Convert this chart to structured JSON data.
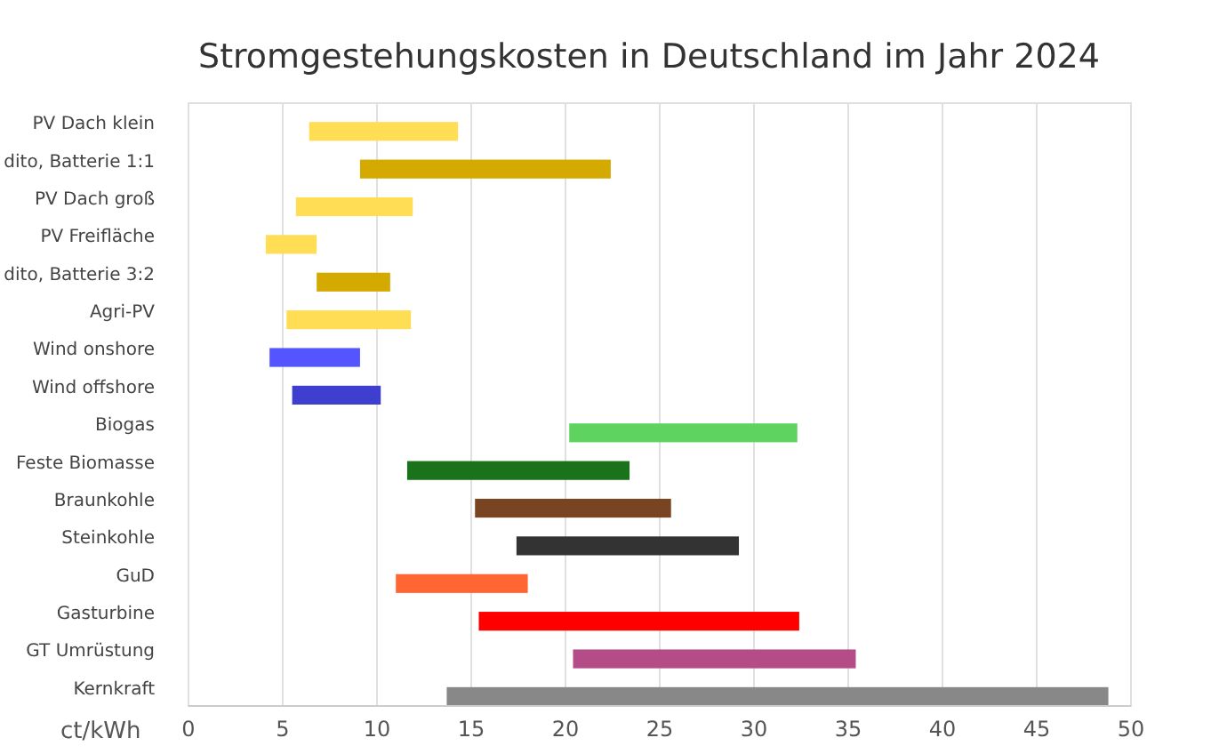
{
  "chart_data": {
    "type": "bar",
    "orientation": "horizontal",
    "title": "Stromgestehungskosten in Deutschland im Jahr 2024",
    "xlabel": "ct/kWh",
    "categories": [
      "PV Dach klein",
      "dito, Batterie 1:1",
      "PV Dach groß",
      "PV Freifläche",
      "dito, Batterie 3:2",
      "Agri-PV",
      "Wind onshore",
      "Wind offshore",
      "Biogas",
      "Feste Biomasse",
      "Braunkohle",
      "Steinkohle",
      "GuD",
      "Gasturbine",
      "GT Umrüstung",
      "Kernkraft"
    ],
    "base": [
      6.4,
      9.1,
      5.7,
      4.1,
      6.8,
      5.2,
      4.3,
      5.5,
      20.2,
      11.6,
      15.2,
      17.4,
      11.0,
      15.4,
      20.4,
      13.7
    ],
    "values": [
      7.9,
      13.3,
      6.2,
      2.7,
      3.9,
      6.6,
      4.8,
      4.7,
      12.1,
      11.8,
      10.4,
      11.8,
      7.0,
      17.0,
      15.0,
      35.1
    ],
    "colors": [
      "#ffdd55",
      "#d4aa00",
      "#ffdd55",
      "#ffdd55",
      "#d4aa00",
      "#ffdd55",
      "#5555ff",
      "#3f3fcf",
      "#5fd35f",
      "#1a721a",
      "#784421",
      "#333333",
      "#ff6633",
      "#ff0000",
      "#b44d87",
      "#888888"
    ],
    "xlim": [
      0,
      50
    ],
    "xticks": [
      0,
      5,
      10,
      15,
      20,
      25,
      30,
      35,
      40,
      45,
      50
    ],
    "grid": "x"
  }
}
